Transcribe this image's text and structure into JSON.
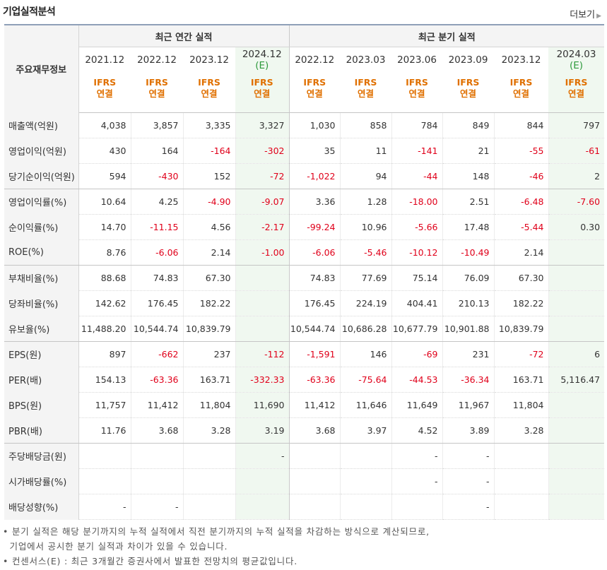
{
  "header": {
    "title": "기업실적분석",
    "more_label": "더보기"
  },
  "table": {
    "corner_label": "주요재무정보",
    "group_labels": [
      "최근 연간 실적",
      "최근 분기 실적"
    ],
    "periods": [
      {
        "date": "2021.12",
        "est": "",
        "std1": "IFRS",
        "std2": "연결"
      },
      {
        "date": "2022.12",
        "est": "",
        "std1": "IFRS",
        "std2": "연결"
      },
      {
        "date": "2023.12",
        "est": "",
        "std1": "IFRS",
        "std2": "연결"
      },
      {
        "date": "2024.12",
        "est": "(E)",
        "std1": "IFRS",
        "std2": "연결"
      },
      {
        "date": "2022.12",
        "est": "",
        "std1": "IFRS",
        "std2": "연결"
      },
      {
        "date": "2023.03",
        "est": "",
        "std1": "IFRS",
        "std2": "연결"
      },
      {
        "date": "2023.06",
        "est": "",
        "std1": "IFRS",
        "std2": "연결"
      },
      {
        "date": "2023.09",
        "est": "",
        "std1": "IFRS",
        "std2": "연결"
      },
      {
        "date": "2023.12",
        "est": "",
        "std1": "IFRS",
        "std2": "연결"
      },
      {
        "date": "2024.03",
        "est": "(E)",
        "std1": "IFRS",
        "std2": "연결"
      }
    ],
    "rows": [
      {
        "label": "매출액(억원)",
        "values": [
          "4,038",
          "3,857",
          "3,335",
          "3,327",
          "1,030",
          "858",
          "784",
          "849",
          "844",
          "797"
        ]
      },
      {
        "label": "영업이익(억원)",
        "values": [
          "430",
          "164",
          "-164",
          "-302",
          "35",
          "11",
          "-141",
          "21",
          "-55",
          "-61"
        ]
      },
      {
        "label": "당기순이익(억원)",
        "values": [
          "594",
          "-430",
          "152",
          "-72",
          "-1,022",
          "94",
          "-44",
          "148",
          "-46",
          "2"
        ],
        "group_end": true
      },
      {
        "label": "영업이익률(%)",
        "values": [
          "10.64",
          "4.25",
          "-4.90",
          "-9.07",
          "3.36",
          "1.28",
          "-18.00",
          "2.51",
          "-6.48",
          "-7.60"
        ]
      },
      {
        "label": "순이익률(%)",
        "values": [
          "14.70",
          "-11.15",
          "4.56",
          "-2.17",
          "-99.24",
          "10.96",
          "-5.66",
          "17.48",
          "-5.44",
          "0.30"
        ]
      },
      {
        "label": "ROE(%)",
        "values": [
          "8.76",
          "-6.06",
          "2.14",
          "-1.00",
          "-6.06",
          "-5.46",
          "-10.12",
          "-10.49",
          "2.14",
          ""
        ],
        "group_end": true
      },
      {
        "label": "부채비율(%)",
        "values": [
          "88.68",
          "74.83",
          "67.30",
          "",
          "74.83",
          "77.69",
          "75.14",
          "76.09",
          "67.30",
          ""
        ]
      },
      {
        "label": "당좌비율(%)",
        "values": [
          "142.62",
          "176.45",
          "182.22",
          "",
          "176.45",
          "224.19",
          "404.41",
          "210.13",
          "182.22",
          ""
        ]
      },
      {
        "label": "유보율(%)",
        "values": [
          "11,488.20",
          "10,544.74",
          "10,839.79",
          "",
          "10,544.74",
          "10,686.28",
          "10,677.79",
          "10,901.88",
          "10,839.79",
          ""
        ],
        "group_end": true
      },
      {
        "label": "EPS(원)",
        "values": [
          "897",
          "-662",
          "237",
          "-112",
          "-1,591",
          "146",
          "-69",
          "231",
          "-72",
          "6"
        ]
      },
      {
        "label": "PER(배)",
        "values": [
          "154.13",
          "-63.36",
          "163.71",
          "-332.33",
          "-63.36",
          "-75.64",
          "-44.53",
          "-36.34",
          "163.71",
          "5,116.47"
        ]
      },
      {
        "label": "BPS(원)",
        "values": [
          "11,757",
          "11,412",
          "11,804",
          "11,690",
          "11,412",
          "11,646",
          "11,649",
          "11,967",
          "11,804",
          ""
        ]
      },
      {
        "label": "PBR(배)",
        "values": [
          "11.76",
          "3.68",
          "3.28",
          "3.19",
          "3.68",
          "3.97",
          "4.52",
          "3.89",
          "3.28",
          ""
        ],
        "group_end": true
      },
      {
        "label": "주당배당금(원)",
        "values": [
          "",
          "",
          "",
          "-",
          "",
          "",
          "-",
          "-",
          "",
          ""
        ]
      },
      {
        "label": "시가배당률(%)",
        "values": [
          "",
          "",
          "",
          "",
          "",
          "",
          "-",
          "-",
          "",
          ""
        ]
      },
      {
        "label": "배당성향(%)",
        "values": [
          "-",
          "-",
          "",
          "",
          "",
          "",
          "",
          "-",
          "",
          ""
        ]
      }
    ]
  },
  "notes": [
    "• 분기 실적은 해당 분기까지의 누적 실적에서 직전 분기까지의 누적 실적을 차감하는 방식으로 계산되므로,",
    "  기업에서 공시한 분기 실적과 차이가 있을 수 있습니다.",
    "• 컨센서스(E) : 최근 3개월간 증권사에서 발표한 전망치의 평균값입니다."
  ],
  "colors": {
    "negative": "#e0001a",
    "ifrs": "#e07000",
    "estimate_bg": "#f0f8f0",
    "estimate_mark": "#2e9a3c"
  }
}
